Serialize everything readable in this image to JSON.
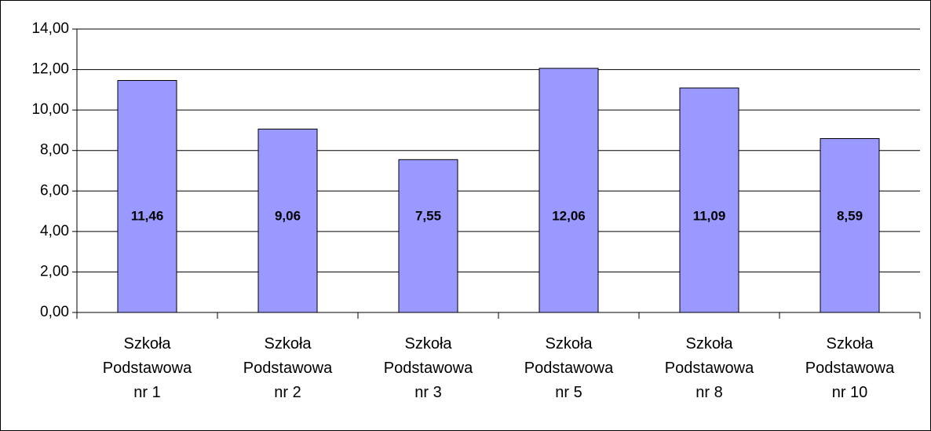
{
  "chart_data": {
    "type": "bar",
    "categories": [
      "Szkoła Podstawowa nr 1",
      "Szkoła Podstawowa nr 2",
      "Szkoła Podstawowa nr 3",
      "Szkoła Podstawowa nr 5",
      "Szkoła Podstawowa nr 8",
      "Szkoła Podstawowa nr 10"
    ],
    "values": [
      11.46,
      9.06,
      7.55,
      12.06,
      11.09,
      8.59
    ],
    "value_labels": [
      "11,46",
      "9,06",
      "7,55",
      "12,06",
      "11,09",
      "8,59"
    ],
    "color": "#9999ff",
    "ylim": [
      0,
      14
    ],
    "yticks": [
      {
        "value": 0,
        "label": "0,00"
      },
      {
        "value": 2,
        "label": "2,00"
      },
      {
        "value": 4,
        "label": "4,00"
      },
      {
        "value": 6,
        "label": "6,00"
      },
      {
        "value": 8,
        "label": "8,00"
      },
      {
        "value": 10,
        "label": "10,00"
      },
      {
        "value": 12,
        "label": "12,00"
      },
      {
        "value": 14,
        "label": "14,00"
      }
    ],
    "grid": true
  }
}
